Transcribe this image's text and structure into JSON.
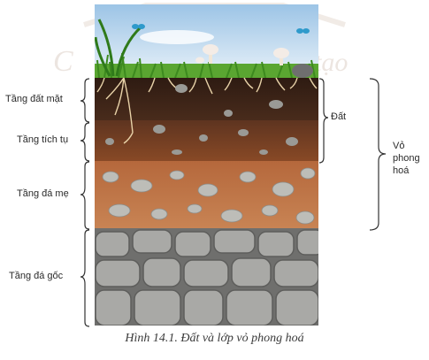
{
  "layers": [
    {
      "label": "Tầng đất mặt"
    },
    {
      "label": "Tầng tích tụ"
    },
    {
      "label": "Tầng đá mẹ"
    },
    {
      "label": "Tầng đá gốc"
    }
  ],
  "groups": {
    "soil": "Đất",
    "weathering_crust": "Vỏ\nphong\nhoá"
  },
  "caption": "Hình 14.1. Đất và lớp vỏ phong hoá",
  "colors": {
    "sky": "#cfe2f3",
    "grass": "#4f9a2b",
    "topsoil": "#3a2418",
    "accumulation": "#6a3a20",
    "parent_rock": "#b8693a",
    "bedrock": "#8a8a88"
  }
}
